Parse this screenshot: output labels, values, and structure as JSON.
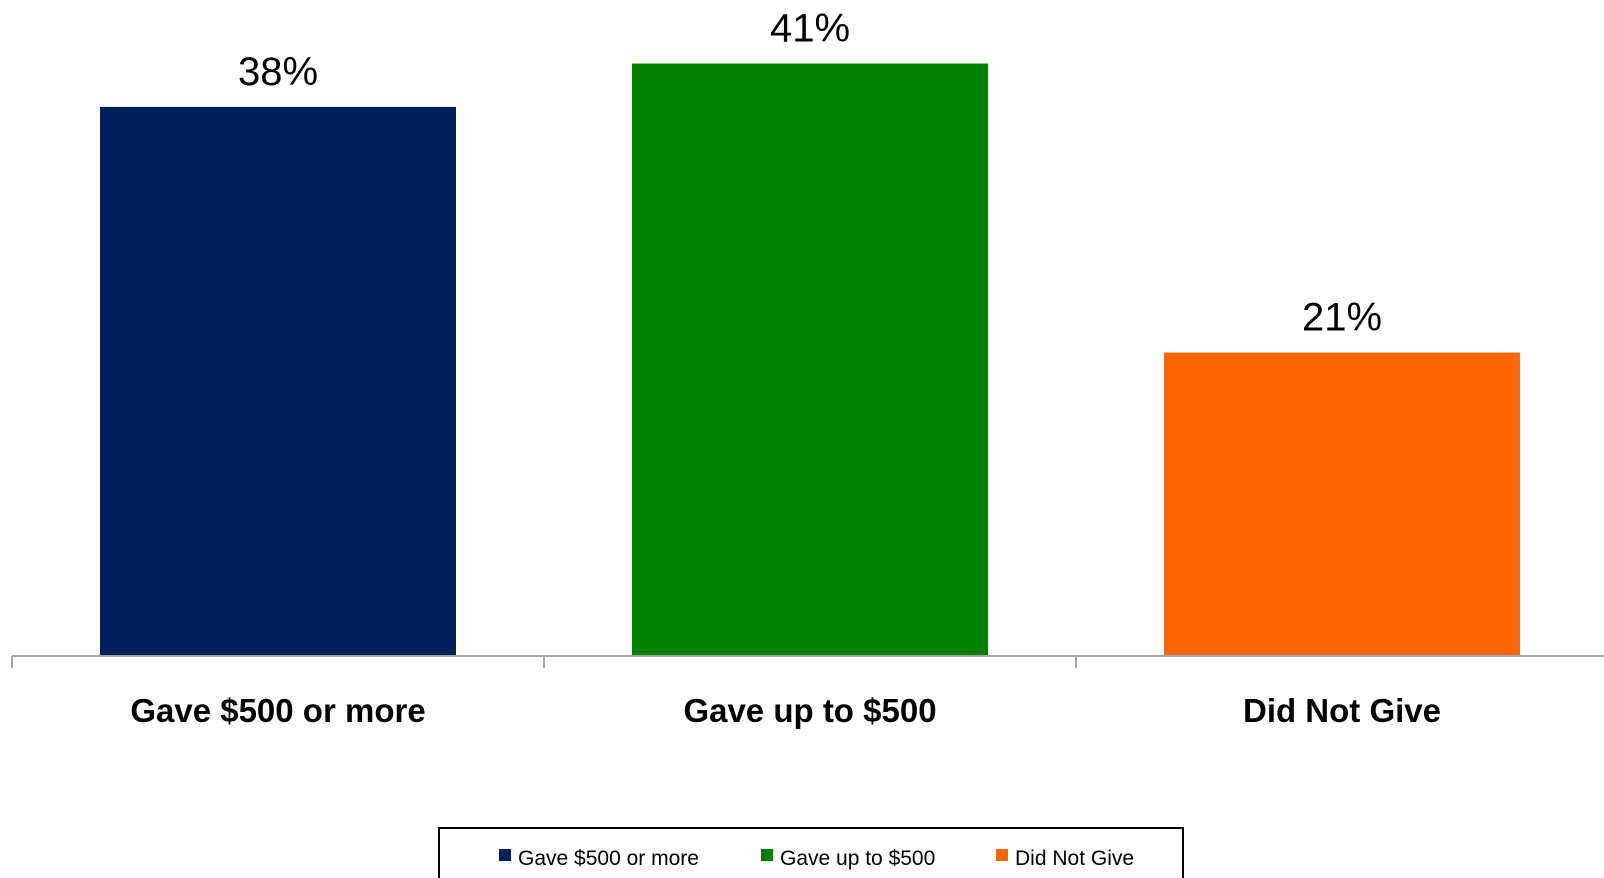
{
  "chart_data": {
    "type": "bar",
    "title": "",
    "xlabel": "",
    "ylabel": "",
    "categories": [
      "Gave $500 or more",
      "Gave up to $500",
      "Did Not Give"
    ],
    "values": [
      38,
      41,
      21
    ],
    "data_labels": [
      "38%",
      "41%",
      "21%"
    ],
    "colors": [
      "#00205B",
      "#008000",
      "#FF6600"
    ],
    "ylim": [
      0,
      45
    ],
    "grid": false,
    "legend": {
      "placement": "bottom",
      "entries": [
        "Gave $500 or more",
        "Gave up to $500",
        "Did Not Give"
      ]
    }
  }
}
